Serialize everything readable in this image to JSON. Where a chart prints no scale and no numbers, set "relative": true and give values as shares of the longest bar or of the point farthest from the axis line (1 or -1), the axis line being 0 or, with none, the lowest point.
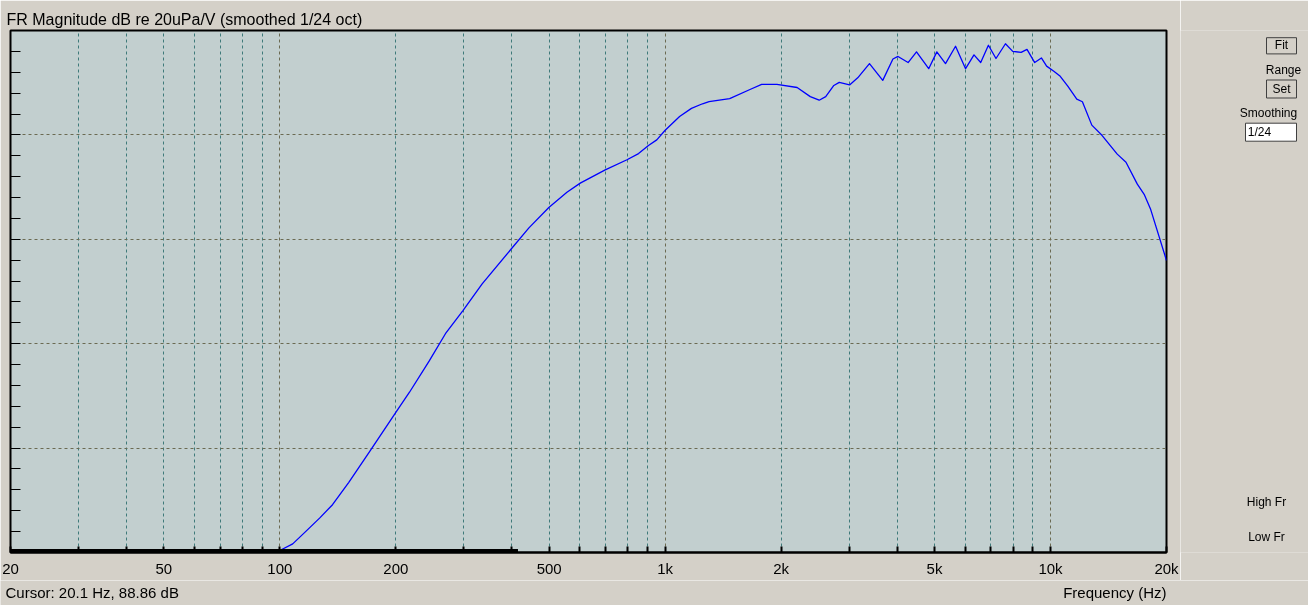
{
  "chart_data": {
    "type": "line",
    "title": "FR Magnitude dB re 20uPa/V (smoothed 1/24 oct)",
    "xlabel": "Frequency (Hz)",
    "log": "x",
    "relative": true,
    "grid": true,
    "xlim": [
      20,
      20000
    ],
    "xticks": [
      20,
      {
        "value": 30,
        "label": null
      },
      {
        "value": 40,
        "label": null
      },
      50,
      {
        "value": 60,
        "label": null
      },
      {
        "value": 70,
        "label": null
      },
      {
        "value": 80,
        "label": null
      },
      {
        "value": 90,
        "label": null
      },
      100,
      200,
      {
        "value": 300,
        "label": null
      },
      {
        "value": 400,
        "label": null
      },
      500,
      {
        "value": 600,
        "label": null
      },
      {
        "value": 700,
        "label": null
      },
      {
        "value": 800,
        "label": null
      },
      {
        "value": 900,
        "label": null
      },
      {
        "value": 1000,
        "label": "1k"
      },
      {
        "value": 2000,
        "label": "2k"
      },
      {
        "value": 3000,
        "label": null
      },
      {
        "value": 4000,
        "label": null
      },
      {
        "value": 5000,
        "label": "5k"
      },
      {
        "value": 6000,
        "label": null
      },
      {
        "value": 7000,
        "label": null
      },
      {
        "value": 8000,
        "label": null
      },
      {
        "value": 9000,
        "label": null
      },
      {
        "value": 10000,
        "label": "10k"
      },
      {
        "value": 20000,
        "label": "20k"
      }
    ],
    "series": [
      {
        "color": "#0000ff",
        "x": [
          98,
          100,
          108,
          117,
          127,
          137,
          151,
          172,
          199,
          217,
          244,
          269,
          299,
          335,
          397,
          443,
          499,
          556,
          602,
          699,
          796,
          853,
          905,
          951,
          1000,
          1090,
          1170,
          1250,
          1300,
          1470,
          1660,
          1780,
          1950,
          2200,
          2380,
          2510,
          2610,
          2740,
          2830,
          3010,
          3160,
          3390,
          3670,
          3900,
          4020,
          4270,
          4490,
          4830,
          5070,
          5340,
          5670,
          6020,
          6330,
          6590,
          6900,
          7220,
          7640,
          7980,
          8390,
          8690,
          9100,
          9470,
          9770,
          10200,
          10600,
          11100,
          11700,
          12100,
          12800,
          13600,
          14900,
          15700,
          16800,
          17500,
          18200,
          20000
        ],
        "values": [
          0,
          0.004,
          0.017,
          0.042,
          0.068,
          0.094,
          0.138,
          0.201,
          0.273,
          0.315,
          0.376,
          0.43,
          0.476,
          0.528,
          0.595,
          0.638,
          0.678,
          0.708,
          0.726,
          0.752,
          0.772,
          0.784,
          0.8,
          0.811,
          0.83,
          0.857,
          0.873,
          0.882,
          0.886,
          0.892,
          0.91,
          0.92,
          0.92,
          0.914,
          0.896,
          0.889,
          0.896,
          0.918,
          0.924,
          0.919,
          0.933,
          0.961,
          0.928,
          0.97,
          0.975,
          0.963,
          0.984,
          0.951,
          0.984,
          0.961,
          0.995,
          0.951,
          0.978,
          0.963,
          0.997,
          0.971,
          1.0,
          0.985,
          0.983,
          0.989,
          0.963,
          0.972,
          0.956,
          0.946,
          0.936,
          0.916,
          0.891,
          0.886,
          0.84,
          0.82,
          0.783,
          0.767,
          0.724,
          0.704,
          0.674,
          0.574
        ]
      },
      {
        "color": "#000000",
        "x": [
          20,
          415
        ],
        "values": [
          0.004,
          0.004
        ]
      }
    ],
    "annotations": [
      "Cursor: 20.1 Hz, 88.86 dB",
      "Fit",
      "Range",
      "Set",
      "Smoothing",
      "1/24",
      "High Fr",
      "Low Fr"
    ]
  }
}
